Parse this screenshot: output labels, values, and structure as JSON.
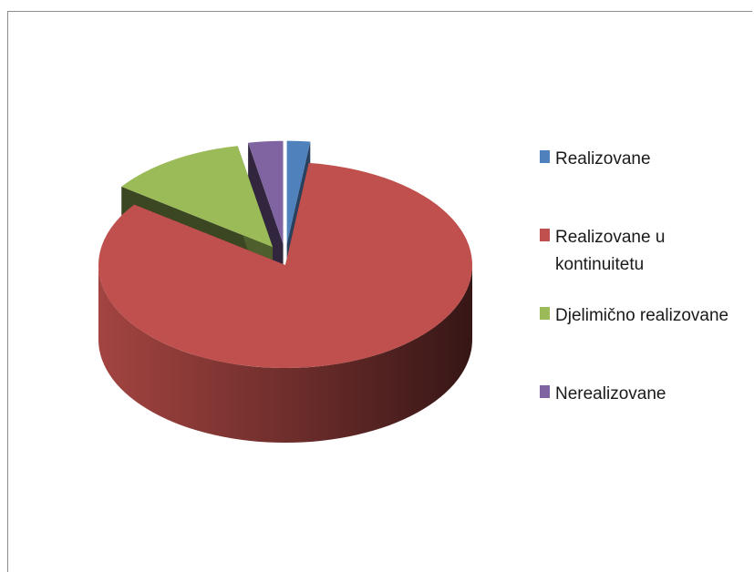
{
  "chart_data": {
    "type": "pie",
    "style": "3d-exploded",
    "title": "",
    "legend_position": "right",
    "slices": [
      {
        "label": "Realizovane",
        "value": 2,
        "color": "#4f81bd",
        "explode": true
      },
      {
        "label": "Realizovane u kontinuitetu",
        "value": 83,
        "color": "#c0504d",
        "explode": false
      },
      {
        "label": "Djelimično realizovane",
        "value": 12,
        "color": "#9bbb59",
        "explode": true
      },
      {
        "label": "Nerealizovane",
        "value": 3,
        "color": "#8064a2",
        "explode": true
      }
    ],
    "legend": [
      {
        "lines": [
          "Realizovane"
        ],
        "color": "#4f81bd"
      },
      {
        "lines": [
          "Realizovane u",
          "kontinuitetu"
        ],
        "color": "#c0504d"
      },
      {
        "lines": [
          "Djelimično realizovane"
        ],
        "color": "#9bbb59"
      },
      {
        "lines": [
          "Nerealizovane"
        ],
        "color": "#8064a2"
      }
    ]
  }
}
